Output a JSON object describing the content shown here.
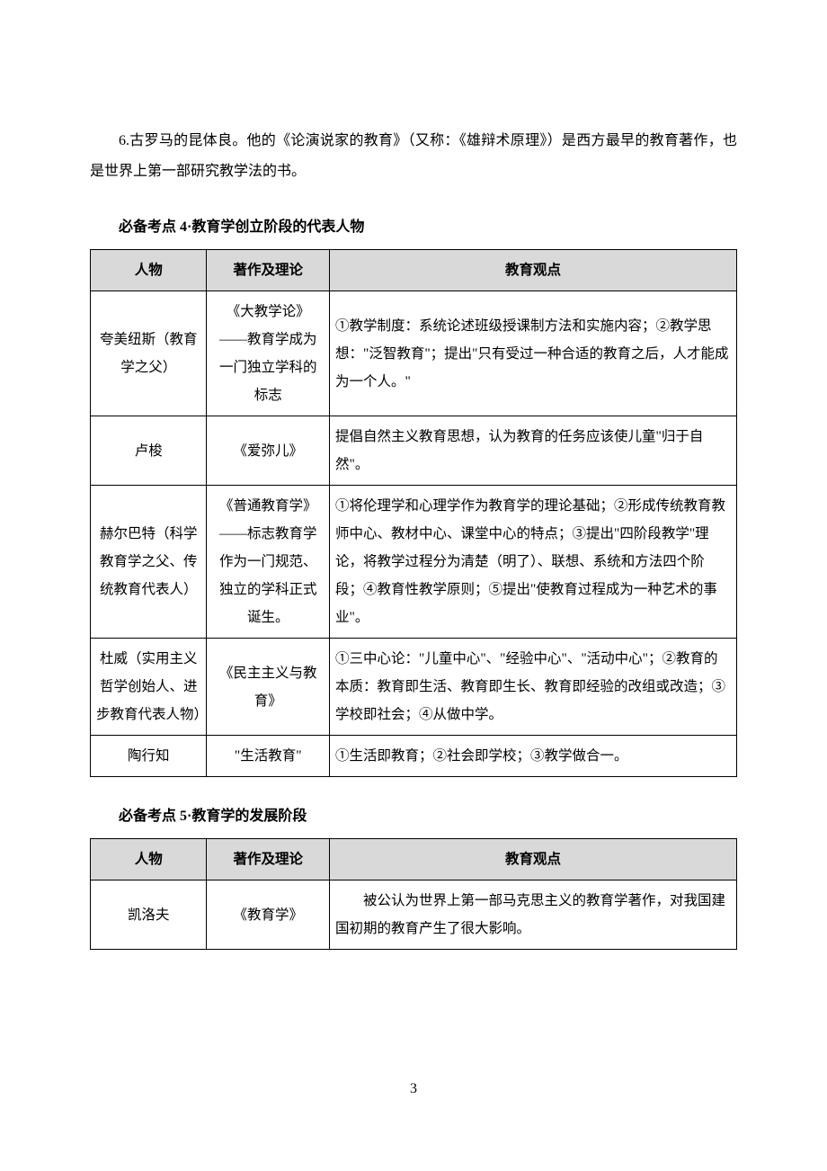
{
  "paragraph": "6.古罗马的昆体良。他的《论演说家的教育》（又称：《雄辩术原理》）是西方最早的教育著作，也是世界上第一部研究教学法的书。",
  "heading4": "必备考点 4·教育学创立阶段的代表人物",
  "heading5": "必备考点 5·教育学的发展阶段",
  "table4": {
    "headers": {
      "col1": "人物",
      "col2": "著作及理论",
      "col3": "教育观点"
    },
    "rows": [
      {
        "person": "夸美纽斯（教育学之父）",
        "works": "《大教学论》——教育学成为一门独立学科的标志",
        "views": "①教学制度：系统论述班级授课制方法和实施内容；②教学思想：\"泛智教育\"；提出\"只有受过一种合适的教育之后，人才能成为一个人。\""
      },
      {
        "person": "卢梭",
        "works": "《爱弥儿》",
        "views": "提倡自然主义教育思想，认为教育的任务应该使儿童\"归于自然\"。"
      },
      {
        "person": "赫尔巴特（科学教育学之父、传统教育代表人）",
        "works": "《普通教育学》——标志教育学作为一门规范、独立的学科正式诞生。",
        "views": "①将伦理学和心理学作为教育学的理论基础；②形成传统教育教师中心、教材中心、课堂中心的特点；③提出\"四阶段教学\"理论，将教学过程分为清楚（明了）、联想、系统和方法四个阶段；④教育性教学原则；⑤提出\"使教育过程成为一种艺术的事业\"。"
      },
      {
        "person": "杜威（实用主义哲学创始人、进步教育代表人物）",
        "works": "《民主主义与教育》",
        "views": "①三中心论：\"儿童中心\"、\"经验中心\"、\"活动中心\"；②教育的本质：教育即生活、教育即生长、教育即经验的改组或改造；③学校即社会；④从做中学。"
      },
      {
        "person": "陶行知",
        "works": "\"生活教育\"",
        "views": "①生活即教育；②社会即学校；③教学做合一。"
      }
    ]
  },
  "table5": {
    "headers": {
      "col1": "人物",
      "col2": "著作及理论",
      "col3": "教育观点"
    },
    "rows": [
      {
        "person": "凯洛夫",
        "works": "《教育学》",
        "views": "被公认为世界上第一部马克思主义的教育学著作，对我国建国初期的教育产生了很大影响。"
      }
    ]
  },
  "pageNumber": "3"
}
